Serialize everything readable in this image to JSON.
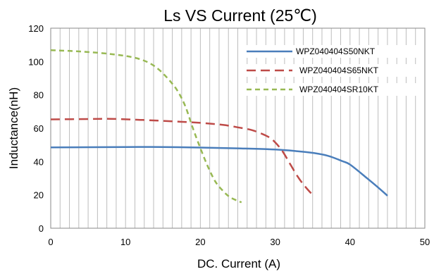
{
  "chart_data": {
    "type": "line",
    "title": "Ls  VS  Current  (25℃)",
    "xlabel": "DC. Current (A)",
    "ylabel": "Inductance(nH)",
    "xlim": [
      0,
      50
    ],
    "ylim": [
      0,
      120
    ],
    "x_ticks": [
      "0",
      "10",
      "20",
      "30",
      "40",
      "50"
    ],
    "y_ticks": [
      "0",
      "20",
      "40",
      "60",
      "80",
      "100",
      "120"
    ],
    "grid": "vertical minor every 1.25 A",
    "legend_position": "top-right",
    "series": [
      {
        "name": "WPZ040404S50NKT",
        "color": "#4a7ebb",
        "dash": "solid",
        "points": [
          [
            0,
            48.5
          ],
          [
            5,
            48.6
          ],
          [
            10,
            48.7
          ],
          [
            15,
            48.7
          ],
          [
            20,
            48.4
          ],
          [
            25,
            47.9
          ],
          [
            30,
            47.2
          ],
          [
            33,
            46.2
          ],
          [
            35,
            45.2
          ],
          [
            37,
            43.5
          ],
          [
            39,
            40.2
          ],
          [
            40,
            38.2
          ],
          [
            42,
            31.0
          ],
          [
            44,
            23.5
          ],
          [
            45,
            19.5
          ]
        ]
      },
      {
        "name": "WPZ040404S65NKT",
        "color": "#be4b48",
        "dash": "long-dash",
        "points": [
          [
            0,
            65.3
          ],
          [
            5,
            65.5
          ],
          [
            8,
            65.6
          ],
          [
            12,
            65.0
          ],
          [
            16,
            64.2
          ],
          [
            20,
            63.2
          ],
          [
            23,
            62.0
          ],
          [
            25,
            60.5
          ],
          [
            27,
            58.7
          ],
          [
            29,
            55.0
          ],
          [
            30,
            51.5
          ],
          [
            31,
            46.0
          ],
          [
            32,
            38.5
          ],
          [
            33,
            31.0
          ],
          [
            34,
            25.0
          ],
          [
            35,
            20.0
          ]
        ]
      },
      {
        "name": "WPZ040404SR10KT",
        "color": "#98b954",
        "dash": "short-dash",
        "points": [
          [
            0,
            106.8
          ],
          [
            4,
            106.0
          ],
          [
            8,
            104.5
          ],
          [
            11,
            102.5
          ],
          [
            13,
            99.5
          ],
          [
            14.5,
            95.0
          ],
          [
            16,
            88.0
          ],
          [
            17,
            82.0
          ],
          [
            18,
            73.0
          ],
          [
            19,
            60.0
          ],
          [
            20,
            48.0
          ],
          [
            21,
            37.0
          ],
          [
            22,
            28.0
          ],
          [
            23,
            22.5
          ],
          [
            24,
            18.5
          ],
          [
            25.5,
            15.5
          ]
        ]
      }
    ]
  }
}
